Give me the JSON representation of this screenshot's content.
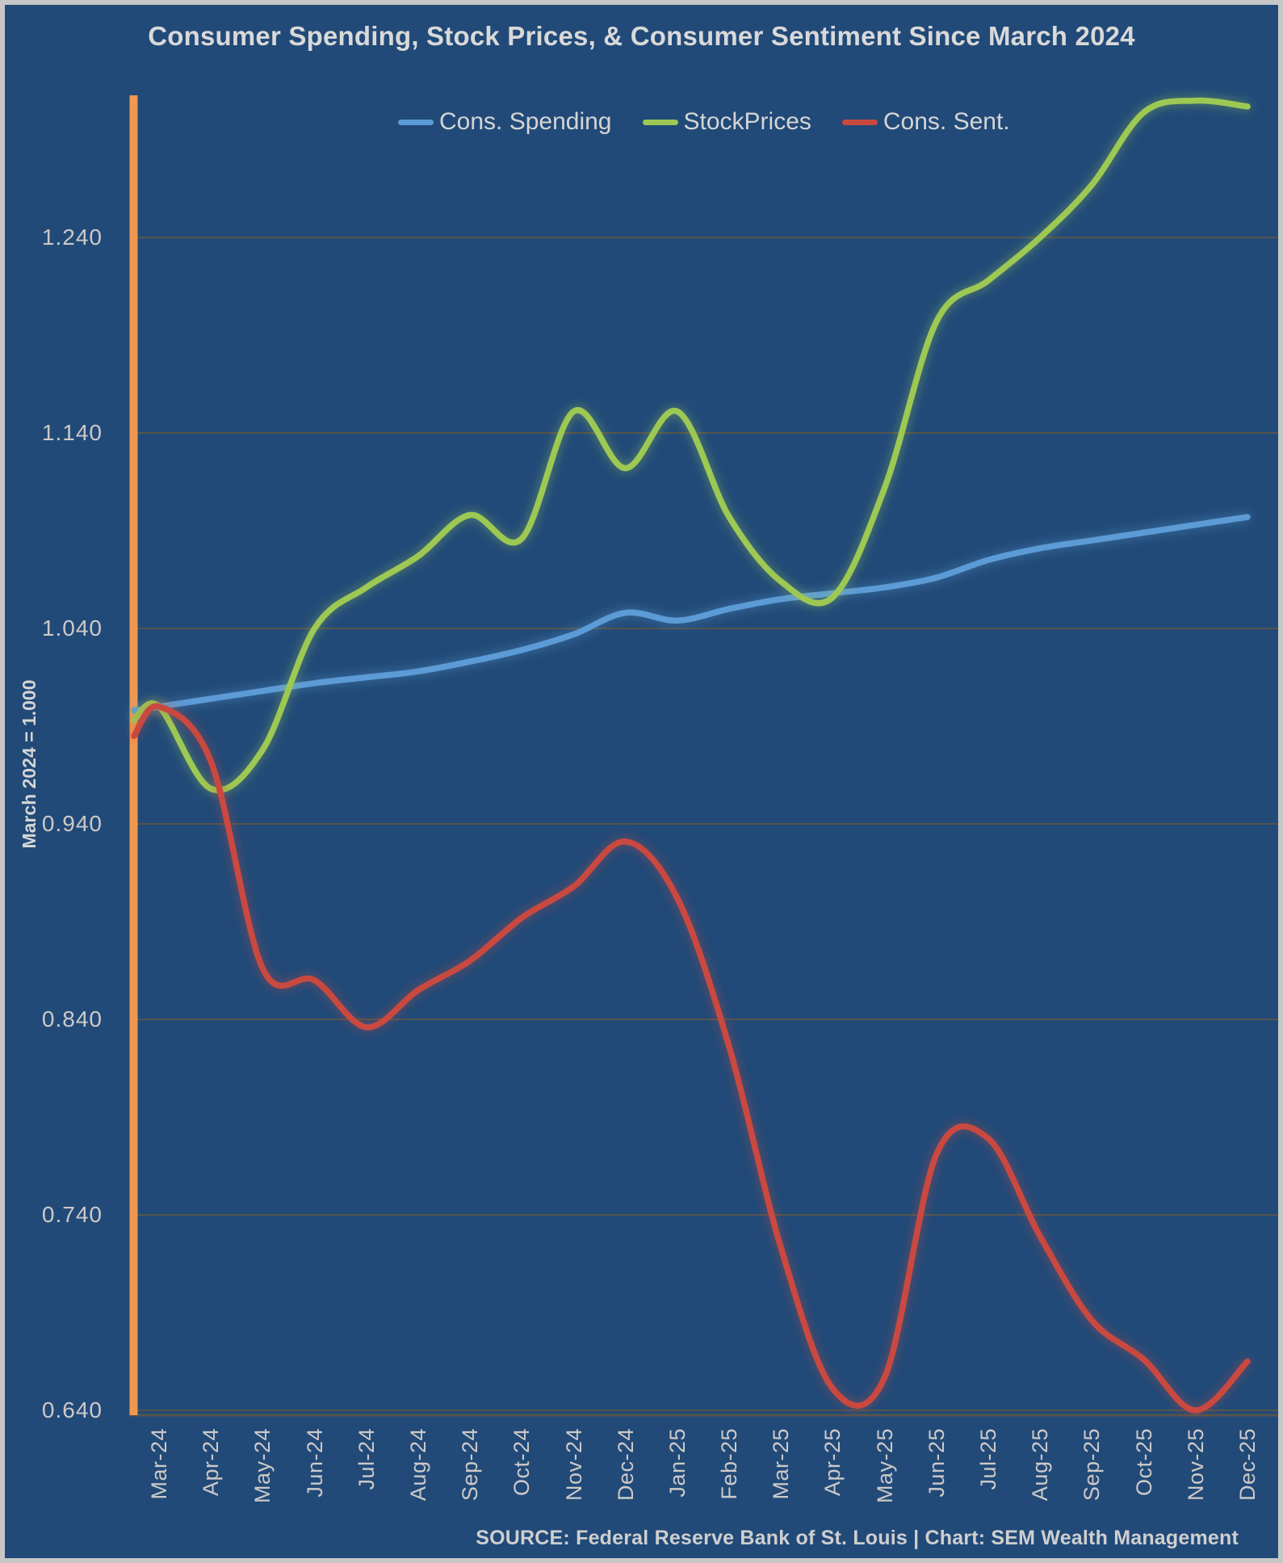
{
  "header": {
    "title": "Consumer Spending, Stock Prices, & Consumer Sentiment Since March 2024"
  },
  "legend": [
    {
      "label": "Cons. Spending",
      "color": "#5b9bd5"
    },
    {
      "label": "StockPrices",
      "color": "#9dc853"
    },
    {
      "label": "Cons. Sent.",
      "color": "#c9493f"
    }
  ],
  "y_axis": {
    "title": "March 2024 = 1.000",
    "ticks": [
      "1.240",
      "1.140",
      "1.040",
      "0.940",
      "0.840",
      "0.740",
      "0.640"
    ]
  },
  "footer": {
    "source": "SOURCE: Federal Reserve Bank of St. Louis | Chart: SEM Wealth Management"
  },
  "colors": {
    "background": "#214a78",
    "border": "#c8c8c8",
    "gridline": "#56544b",
    "baseline_marker": "#f0984e",
    "spending_line": "#5b9bd5",
    "stocks_line": "#9dc853",
    "sentiment_line": "#c9493f"
  },
  "chart_data": {
    "type": "line",
    "title": "Consumer Spending, Stock Prices, & Consumer Sentiment Since March 2024",
    "xlabel": "",
    "ylabel": "March 2024 = 1.000",
    "grid": true,
    "legend_position": "top",
    "ylim": [
      0.615,
      1.34
    ],
    "y_ticks": [
      1.24,
      1.14,
      1.04,
      0.94,
      0.84,
      0.74,
      0.64
    ],
    "baseline_marker": {
      "x": "Mar-24",
      "meaning": "March 2024 = 1.000",
      "color": "#f0984e"
    },
    "categories": [
      "Mar-24",
      "Apr-24",
      "May-24",
      "Jun-24",
      "Jul-24",
      "Aug-24",
      "Sep-24",
      "Oct-24",
      "Nov-24",
      "Dec-24",
      "Jan-25",
      "Feb-25",
      "Mar-25",
      "Apr-25",
      "May-25",
      "Jun-25",
      "Jul-25",
      "Aug-25",
      "Sep-25",
      "Oct-25",
      "Nov-25",
      "Dec-25"
    ],
    "series": [
      {
        "name": "Cons. Spending",
        "color": "#5b9bd5",
        "lead_value": 0.998,
        "values": [
          1.0,
          1.004,
          1.008,
          1.012,
          1.015,
          1.018,
          1.023,
          1.029,
          1.037,
          1.048,
          1.044,
          1.05,
          1.055,
          1.058,
          1.061,
          1.066,
          1.075,
          1.081,
          1.085,
          1.089,
          1.093,
          1.097
        ]
      },
      {
        "name": "StockPrices",
        "color": "#9dc853",
        "lead_value": 0.993,
        "values": [
          1.0,
          0.958,
          0.978,
          1.04,
          1.061,
          1.077,
          1.098,
          1.086,
          1.151,
          1.122,
          1.151,
          1.097,
          1.064,
          1.056,
          1.112,
          1.197,
          1.218,
          1.24,
          1.267,
          1.304,
          1.31,
          1.307
        ]
      },
      {
        "name": "Cons. Sent.",
        "color": "#c9493f",
        "lead_value": 0.985,
        "values": [
          1.0,
          0.972,
          0.866,
          0.86,
          0.836,
          0.855,
          0.87,
          0.892,
          0.908,
          0.931,
          0.902,
          0.826,
          0.723,
          0.651,
          0.657,
          0.771,
          0.779,
          0.729,
          0.686,
          0.666,
          0.64,
          0.665
        ]
      }
    ]
  }
}
